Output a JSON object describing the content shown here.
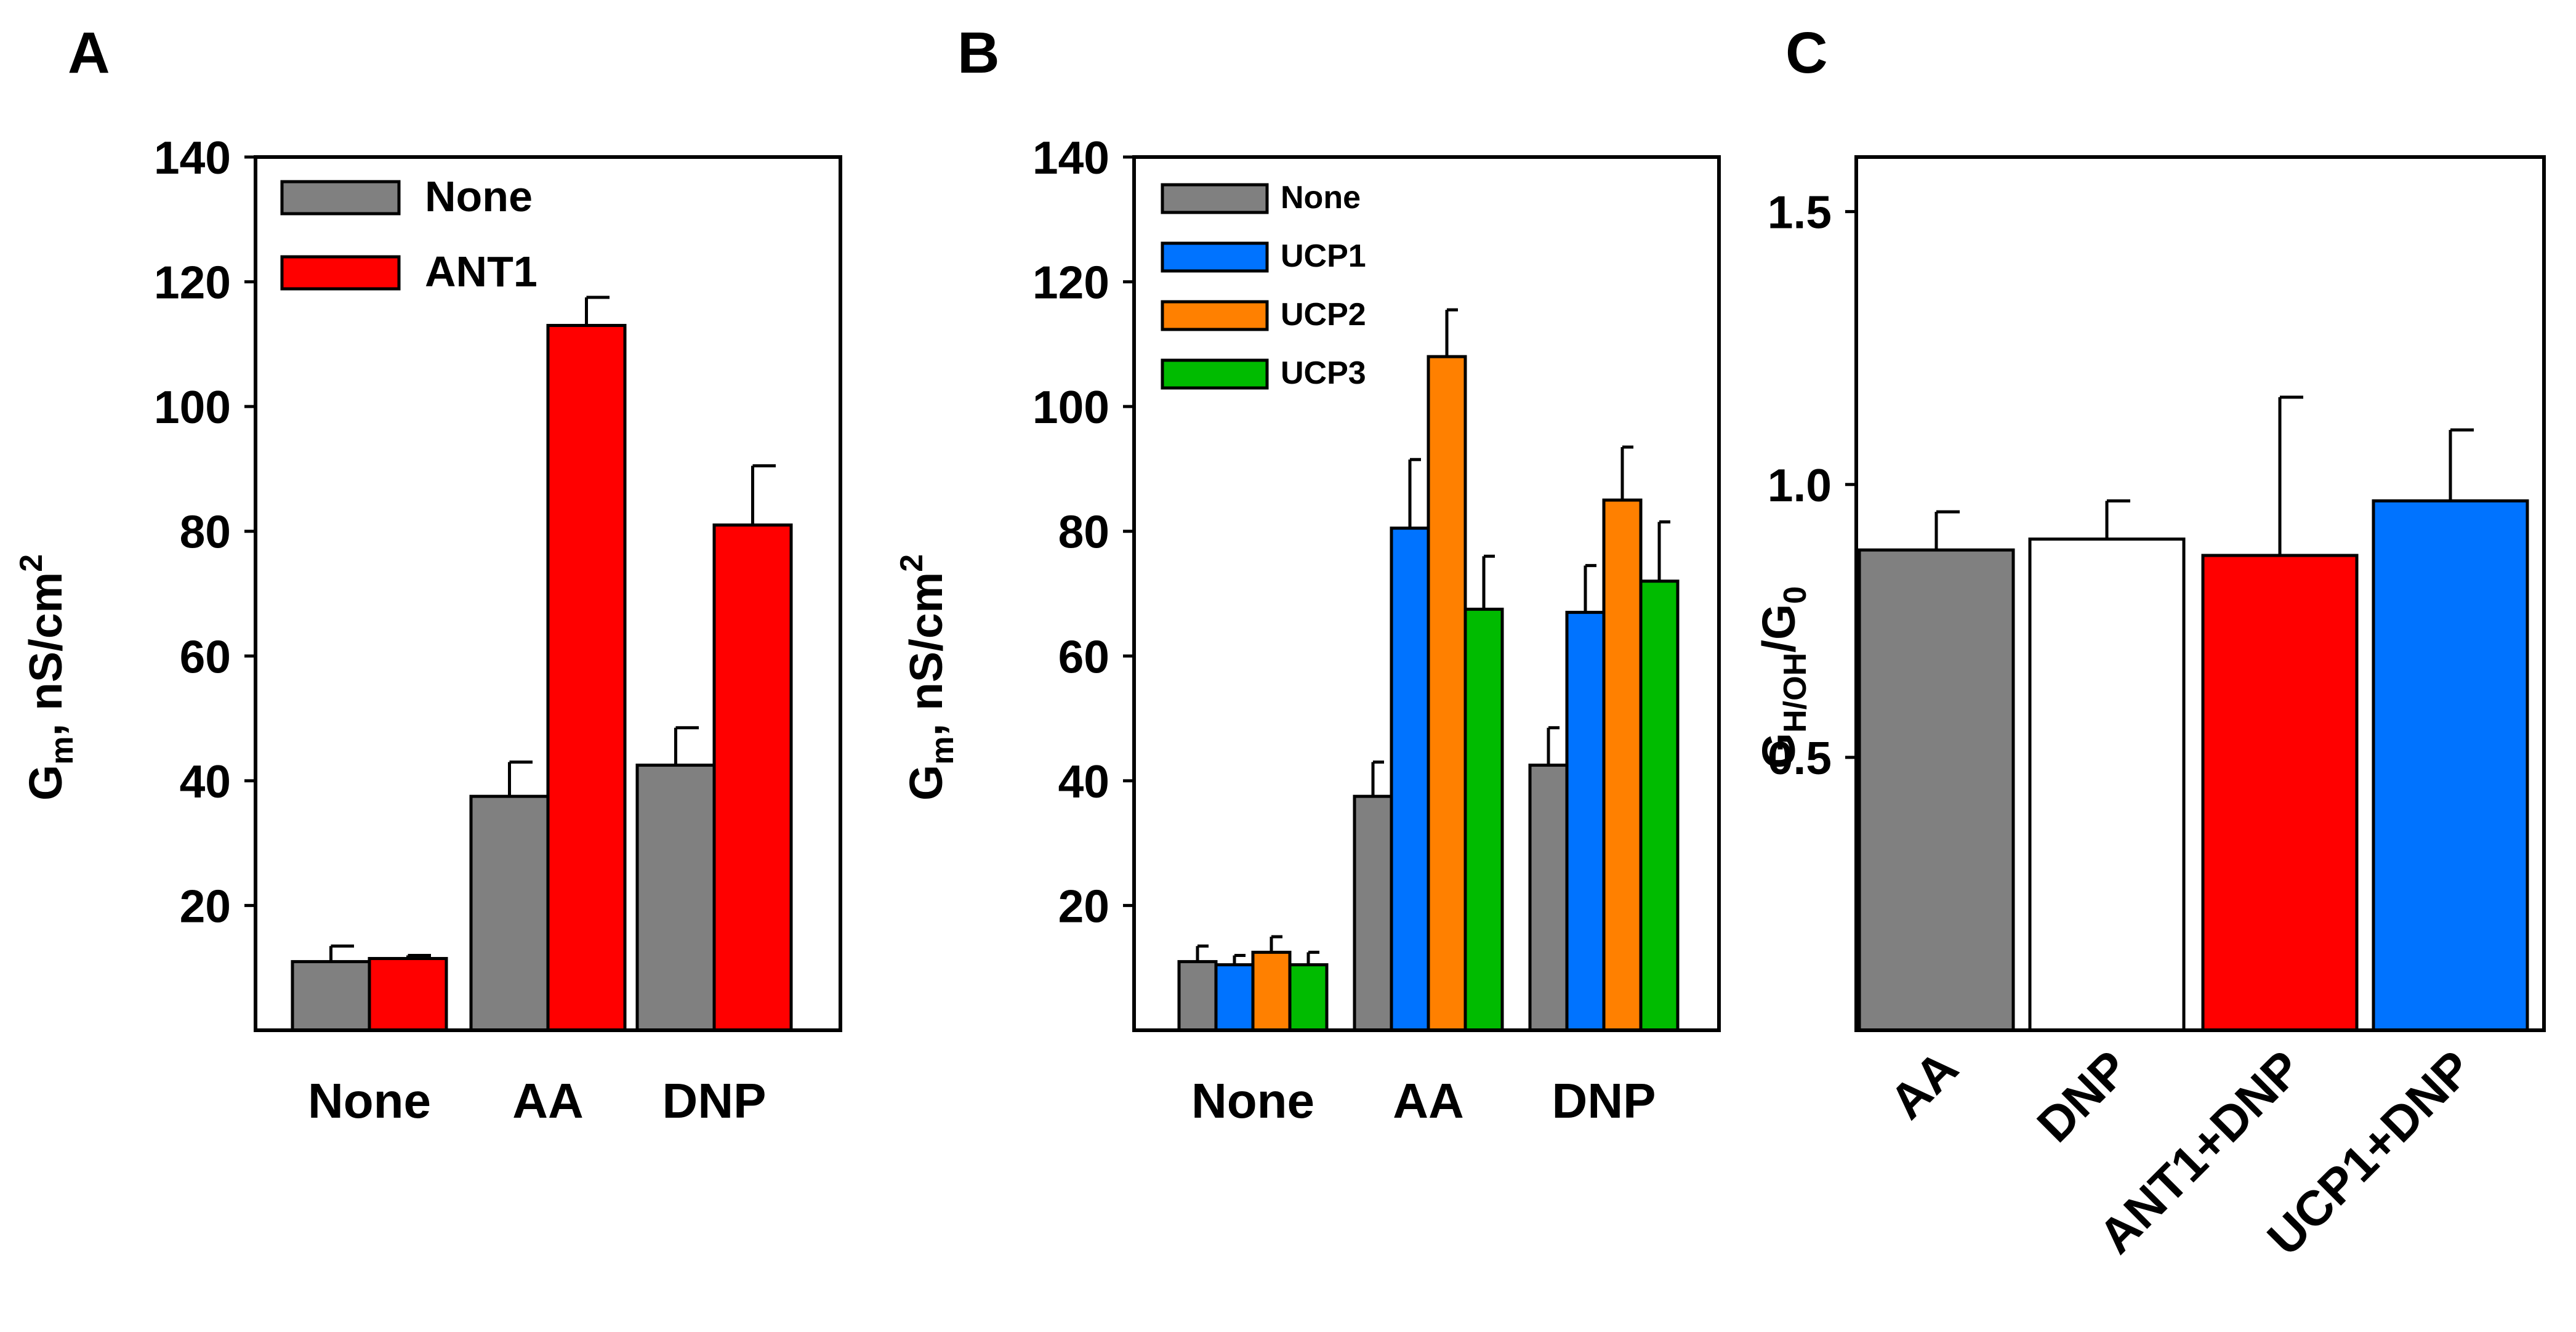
{
  "chart_data": [
    {
      "panel_label": "A",
      "type": "bar",
      "ylabel": "G",
      "ylabel_sub": "m",
      "ylabel_rest": ", nS/cm",
      "ylabel_sup": "2",
      "ylim": [
        0,
        140
      ],
      "yticks": [
        20,
        40,
        60,
        80,
        100,
        120,
        140
      ],
      "categories": [
        "None",
        "AA",
        "DNP"
      ],
      "series": [
        {
          "name": "None",
          "color": "#808080",
          "values": [
            11,
            37.5,
            42.5
          ],
          "errors": [
            2.5,
            5.5,
            6
          ]
        },
        {
          "name": "ANT1",
          "color": "#ff0000",
          "values": [
            11.5,
            113,
            81
          ],
          "errors": [
            0.5,
            4.5,
            9.5
          ]
        }
      ]
    },
    {
      "panel_label": "B",
      "type": "bar",
      "ylabel": "G",
      "ylabel_sub": "m",
      "ylabel_rest": ", nS/cm",
      "ylabel_sup": "2",
      "ylim": [
        0,
        140
      ],
      "yticks": [
        20,
        40,
        60,
        80,
        100,
        120,
        140
      ],
      "categories": [
        "None",
        "AA",
        "DNP"
      ],
      "series": [
        {
          "name": "None",
          "color": "#808080",
          "values": [
            11,
            37.5,
            42.5
          ],
          "errors": [
            2.5,
            5.5,
            6
          ]
        },
        {
          "name": "UCP1",
          "color": "#0073ff",
          "values": [
            10.5,
            80.5,
            67
          ],
          "errors": [
            1.5,
            11,
            7.5
          ]
        },
        {
          "name": "UCP2",
          "color": "#ff8000",
          "values": [
            12.5,
            108,
            85
          ],
          "errors": [
            2.5,
            7.5,
            8.5
          ]
        },
        {
          "name": "UCP3",
          "color": "#00bb00",
          "values": [
            10.5,
            67.5,
            72
          ],
          "errors": [
            2,
            8.5,
            9.5
          ]
        }
      ]
    },
    {
      "panel_label": "C",
      "type": "bar",
      "ylabel": "G",
      "ylabel_sub": "H/OH",
      "ylabel_rest": "/G",
      "ylabel_sub2": "0",
      "ylim": [
        0,
        1.6
      ],
      "yticks": [
        "0.5",
        "1.0",
        "1.5"
      ],
      "categories": [
        "AA",
        "DNP",
        "ANT1+DNP",
        "UCP1+DNP"
      ],
      "colors": [
        "#808080",
        "#ffffff",
        "#ff0000",
        "#0073ff"
      ],
      "values": [
        0.88,
        0.9,
        0.87,
        0.97
      ],
      "errors": [
        0.07,
        0.07,
        0.29,
        0.13
      ]
    }
  ]
}
